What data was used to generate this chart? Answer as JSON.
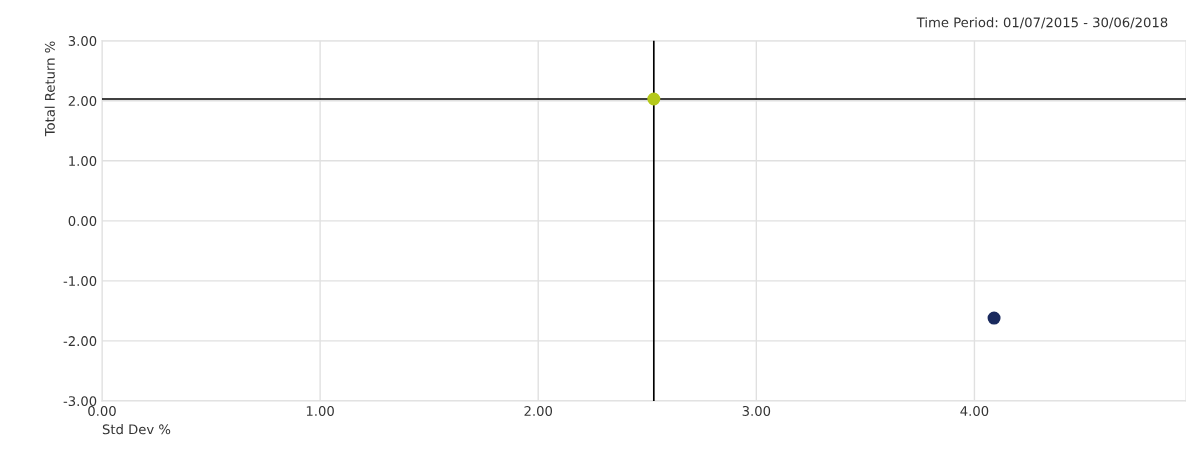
{
  "chart_data": {
    "type": "scatter",
    "subtitle": "Time Period: 01/07/2015 - 30/06/2018",
    "xlabel": "Std Dev %",
    "ylabel": "Total Return %",
    "series": [
      {
        "color": "#b5c91a",
        "x": [
          2.53
        ],
        "values": [
          2.03
        ]
      },
      {
        "color": "#1a2a5e",
        "x": [
          4.09
        ],
        "values": [
          -1.62
        ]
      }
    ],
    "ref_lines": [
      {
        "axis": "x",
        "value": 2.53,
        "color": "#000000"
      },
      {
        "axis": "y",
        "value": 2.03,
        "color": "#000000"
      }
    ],
    "xlim": [
      0,
      4.97
    ],
    "xticks": [
      {
        "value": 0,
        "label": "0.00"
      },
      {
        "value": 1,
        "label": "1.00"
      },
      {
        "value": 2,
        "label": "2.00"
      },
      {
        "value": 3,
        "label": "3.00"
      },
      {
        "value": 4,
        "label": "4.00"
      }
    ],
    "ylim": [
      -3,
      3
    ],
    "yticks": [
      {
        "value": -3,
        "label": "-3.00"
      },
      {
        "value": -2,
        "label": "-2.00"
      },
      {
        "value": -1,
        "label": "-1.00"
      },
      {
        "value": 0,
        "label": "0.00"
      },
      {
        "value": 1,
        "label": "1.00"
      },
      {
        "value": 2,
        "label": "2.00"
      },
      {
        "value": 3,
        "label": "3.00"
      }
    ],
    "grid": true,
    "marker": "circle"
  }
}
